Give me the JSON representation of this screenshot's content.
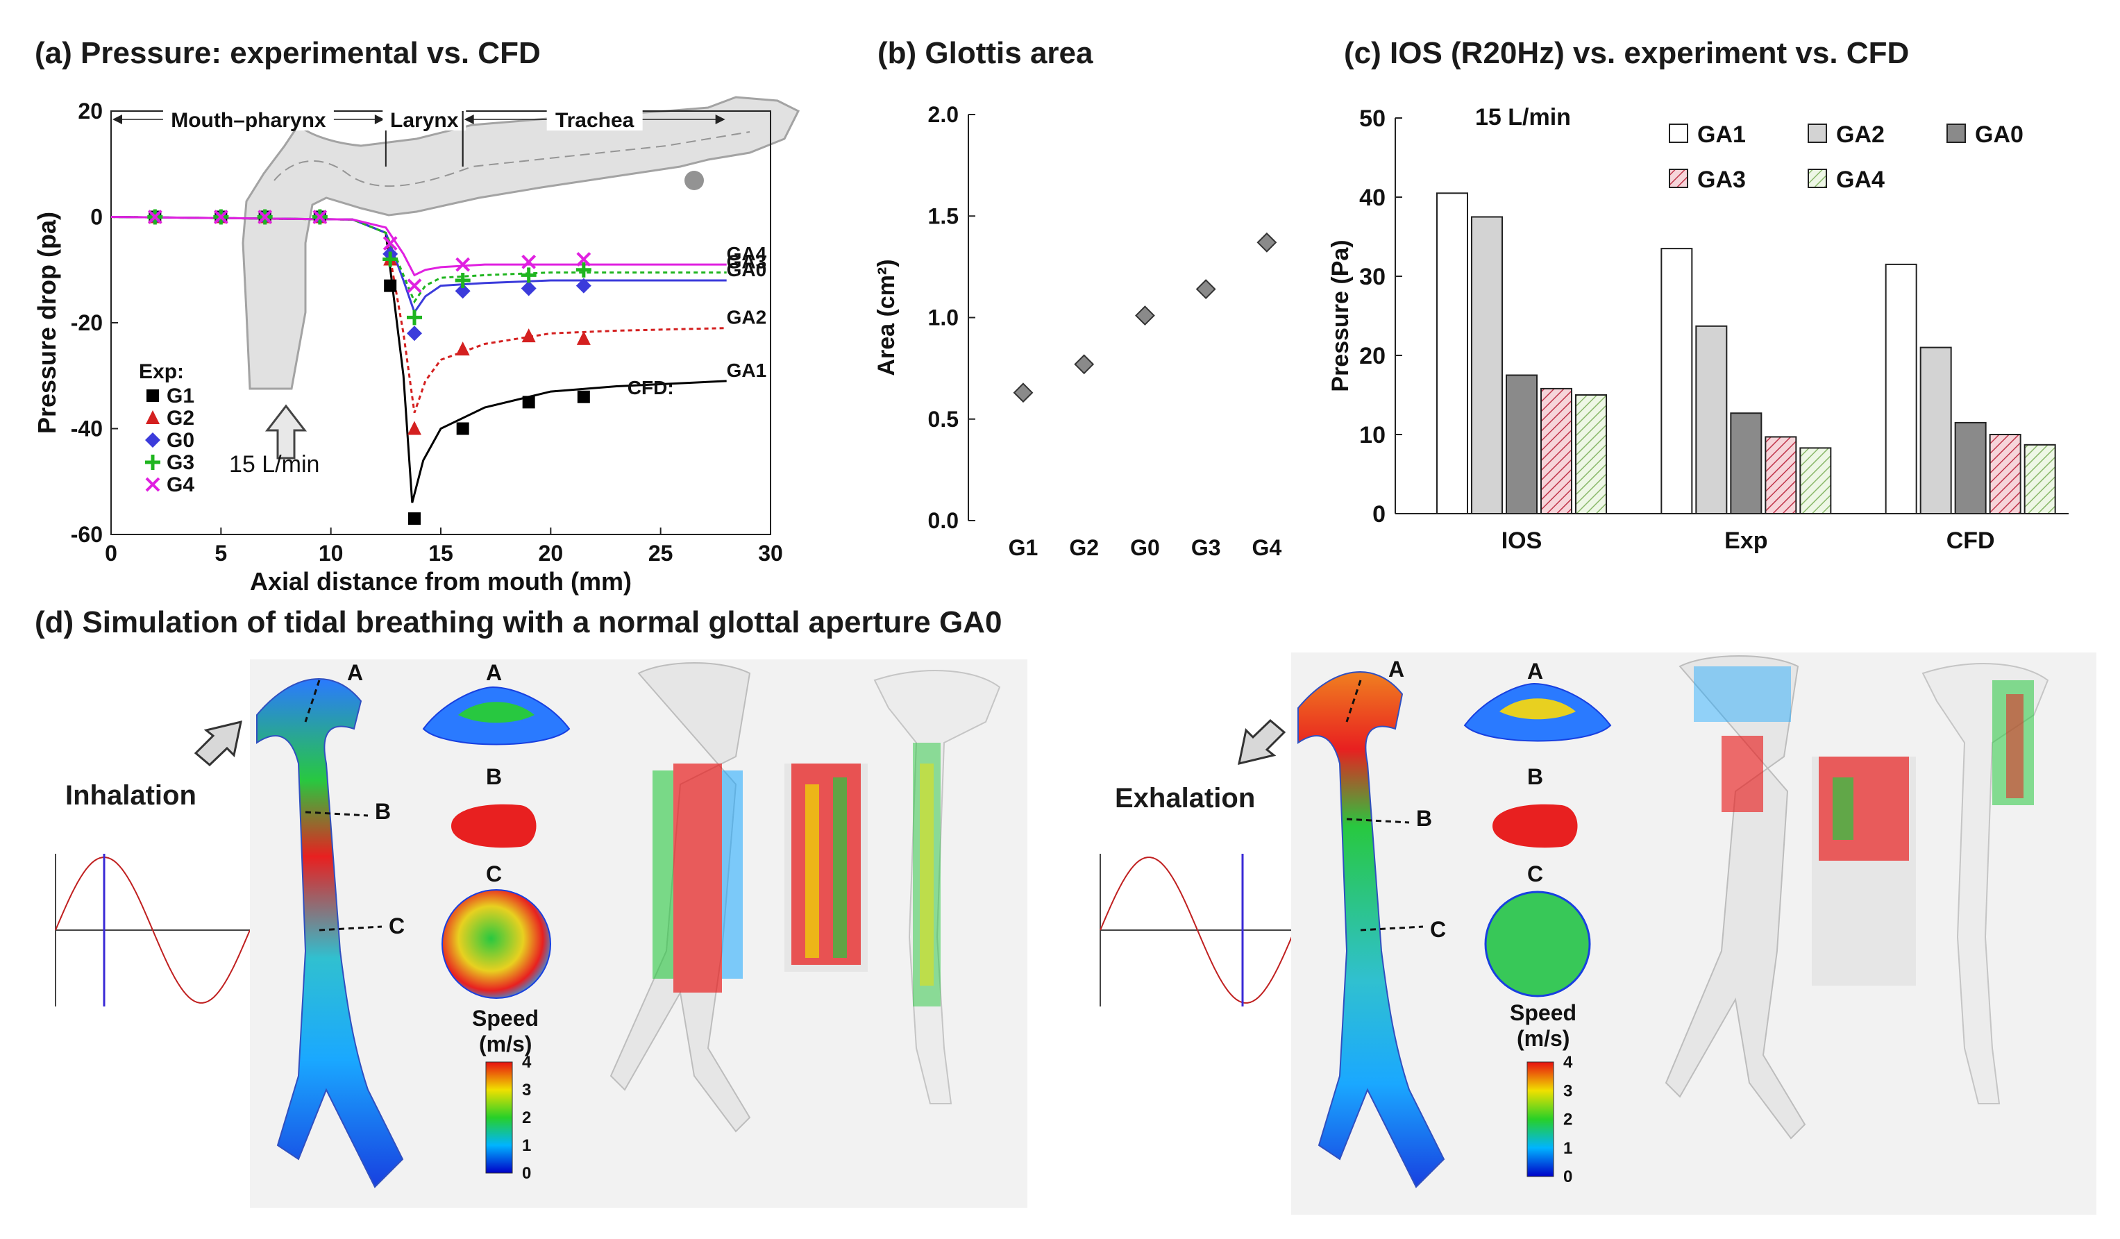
{
  "chart_data": [
    {
      "id": "a",
      "type": "line",
      "title": "(a) Pressure: experimental vs. CFD",
      "xlabel": "Axial distance from mouth (mm)",
      "ylabel": "Pressure drop (pa)",
      "xlim": [
        0,
        30
      ],
      "ylim": [
        -60,
        20
      ],
      "xticks": [
        0,
        5,
        10,
        15,
        20,
        25,
        30
      ],
      "yticks": [
        20,
        0,
        -20,
        -40,
        -60
      ],
      "regions": [
        {
          "label": "Mouth–pharynx",
          "from": 0,
          "to": 12.5
        },
        {
          "label": "Larynx",
          "from": 12.5,
          "to": 16
        },
        {
          "label": "Trachea",
          "from": 16,
          "to": 28
        }
      ],
      "flow_label": "15 L/min",
      "exp_legend_title": "Exp:",
      "cfd_label": "CFD:",
      "experimental": [
        {
          "name": "G1",
          "color": "#000000",
          "marker": "square",
          "x": [
            2,
            5,
            7,
            9.5,
            12.7,
            13.8,
            16,
            19,
            21.5
          ],
          "y": [
            0,
            0,
            0,
            0,
            -13,
            -57,
            -40,
            -35,
            -34
          ]
        },
        {
          "name": "G2",
          "color": "#d42020",
          "marker": "triangle",
          "x": [
            2,
            5,
            7,
            9.5,
            12.7,
            13.8,
            16,
            19,
            21.5
          ],
          "y": [
            0,
            0,
            0,
            0,
            -8,
            -40,
            -25,
            -22.5,
            -23
          ]
        },
        {
          "name": "G0",
          "color": "#3b3bdb",
          "marker": "diamond",
          "x": [
            2,
            5,
            7,
            9.5,
            12.7,
            13.8,
            16,
            19,
            21.5
          ],
          "y": [
            0,
            0,
            0,
            0,
            -7,
            -22,
            -14,
            -13.5,
            -13
          ]
        },
        {
          "name": "G3",
          "color": "#1fb51f",
          "marker": "plus",
          "x": [
            2,
            5,
            7,
            9.5,
            12.7,
            13.8,
            16,
            19,
            21.5
          ],
          "y": [
            0,
            0,
            0,
            0,
            -8,
            -19,
            -12,
            -11,
            -10
          ]
        },
        {
          "name": "G4",
          "color": "#e020e0",
          "marker": "cross",
          "x": [
            2,
            5,
            7,
            9.5,
            12.7,
            13.8,
            16,
            19,
            21.5
          ],
          "y": [
            0,
            0,
            0,
            0,
            -5,
            -13,
            -9,
            -8.5,
            -8
          ]
        }
      ],
      "cfd": [
        {
          "name": "GA1",
          "color": "#000000",
          "dash": "",
          "x": [
            0,
            11,
            12.5,
            13.3,
            13.7,
            14.2,
            15,
            17,
            20,
            23,
            28
          ],
          "y": [
            0,
            -0.5,
            -3,
            -30,
            -54,
            -46,
            -40,
            -36,
            -33,
            -32,
            -31
          ]
        },
        {
          "name": "GA2",
          "color": "#d42020",
          "dash": "6,5",
          "x": [
            0,
            11,
            12.5,
            13.3,
            13.8,
            14.3,
            15,
            17,
            20,
            23,
            28
          ],
          "y": [
            0,
            -0.5,
            -3,
            -22,
            -37,
            -31,
            -27,
            -24,
            -22,
            -21.5,
            -21
          ]
        },
        {
          "name": "GA0",
          "color": "#3b3bdb",
          "dash": "",
          "x": [
            0,
            11,
            12.5,
            13.3,
            13.8,
            14.3,
            15,
            17,
            20,
            23,
            28
          ],
          "y": [
            0,
            -0.5,
            -3,
            -12,
            -18,
            -15,
            -13,
            -12.5,
            -12,
            -12,
            -12
          ]
        },
        {
          "name": "GA3",
          "color": "#1fb51f",
          "dash": "6,5",
          "x": [
            0,
            11,
            12.5,
            13.3,
            13.8,
            14.3,
            15,
            17,
            20,
            23,
            28
          ],
          "y": [
            0,
            -0.5,
            -3,
            -11,
            -16,
            -13,
            -11.5,
            -11,
            -10.5,
            -10.5,
            -10.5
          ]
        },
        {
          "name": "GA4",
          "color": "#e020e0",
          "dash": "",
          "x": [
            0,
            11,
            12.5,
            13.3,
            13.8,
            14.3,
            15,
            17,
            20,
            23,
            28
          ],
          "y": [
            0,
            -0.5,
            -2,
            -7,
            -11,
            -10,
            -9.5,
            -9,
            -9,
            -9,
            -9
          ]
        }
      ]
    },
    {
      "id": "b",
      "type": "scatter",
      "title": "(b) Glottis area",
      "ylabel": "Area (cm²)",
      "ylim": [
        0,
        2
      ],
      "yticks": [
        "0.0",
        "0.5",
        "1.0",
        "1.5",
        "2.0"
      ],
      "categories": [
        "G1",
        "G2",
        "G0",
        "G3",
        "G4"
      ],
      "values": [
        0.63,
        0.77,
        1.01,
        1.14,
        1.37
      ]
    },
    {
      "id": "c",
      "type": "bar",
      "title": "(c) IOS (R20Hz) vs. experiment vs. CFD",
      "ylabel": "Pressure (Pa)",
      "ylim": [
        0,
        50
      ],
      "yticks": [
        0,
        10,
        20,
        30,
        40,
        50
      ],
      "flow_label": "15 L/min",
      "categories": [
        "IOS",
        "Exp",
        "CFD"
      ],
      "series": [
        {
          "name": "GA1",
          "fill": "#ffffff",
          "pattern": "",
          "values": [
            40.5,
            33.5,
            31.5
          ]
        },
        {
          "name": "GA2",
          "fill": "#d3d3d3",
          "pattern": "",
          "values": [
            37.5,
            23.7,
            21.0
          ]
        },
        {
          "name": "GA0",
          "fill": "#8a8a8a",
          "pattern": "",
          "values": [
            17.5,
            12.7,
            11.5
          ]
        },
        {
          "name": "GA3",
          "fill": "#f3c6cc",
          "pattern": "hatchRed",
          "values": [
            15.8,
            9.7,
            10.0
          ]
        },
        {
          "name": "GA4",
          "fill": "#e2f1d6",
          "pattern": "hatchGreen",
          "values": [
            15.0,
            8.3,
            8.7
          ]
        }
      ]
    }
  ],
  "panel_d": {
    "title": "(d) Simulation of tidal breathing with a normal glottal aperture GA0",
    "inhalation_label": "Inhalation",
    "exhalation_label": "Exhalation",
    "section_labels": [
      "A",
      "B",
      "C"
    ],
    "speed_label": "Speed",
    "speed_unit": "(m/s)",
    "speed_ticks": [
      "4",
      "3",
      "2",
      "1",
      "0"
    ]
  }
}
